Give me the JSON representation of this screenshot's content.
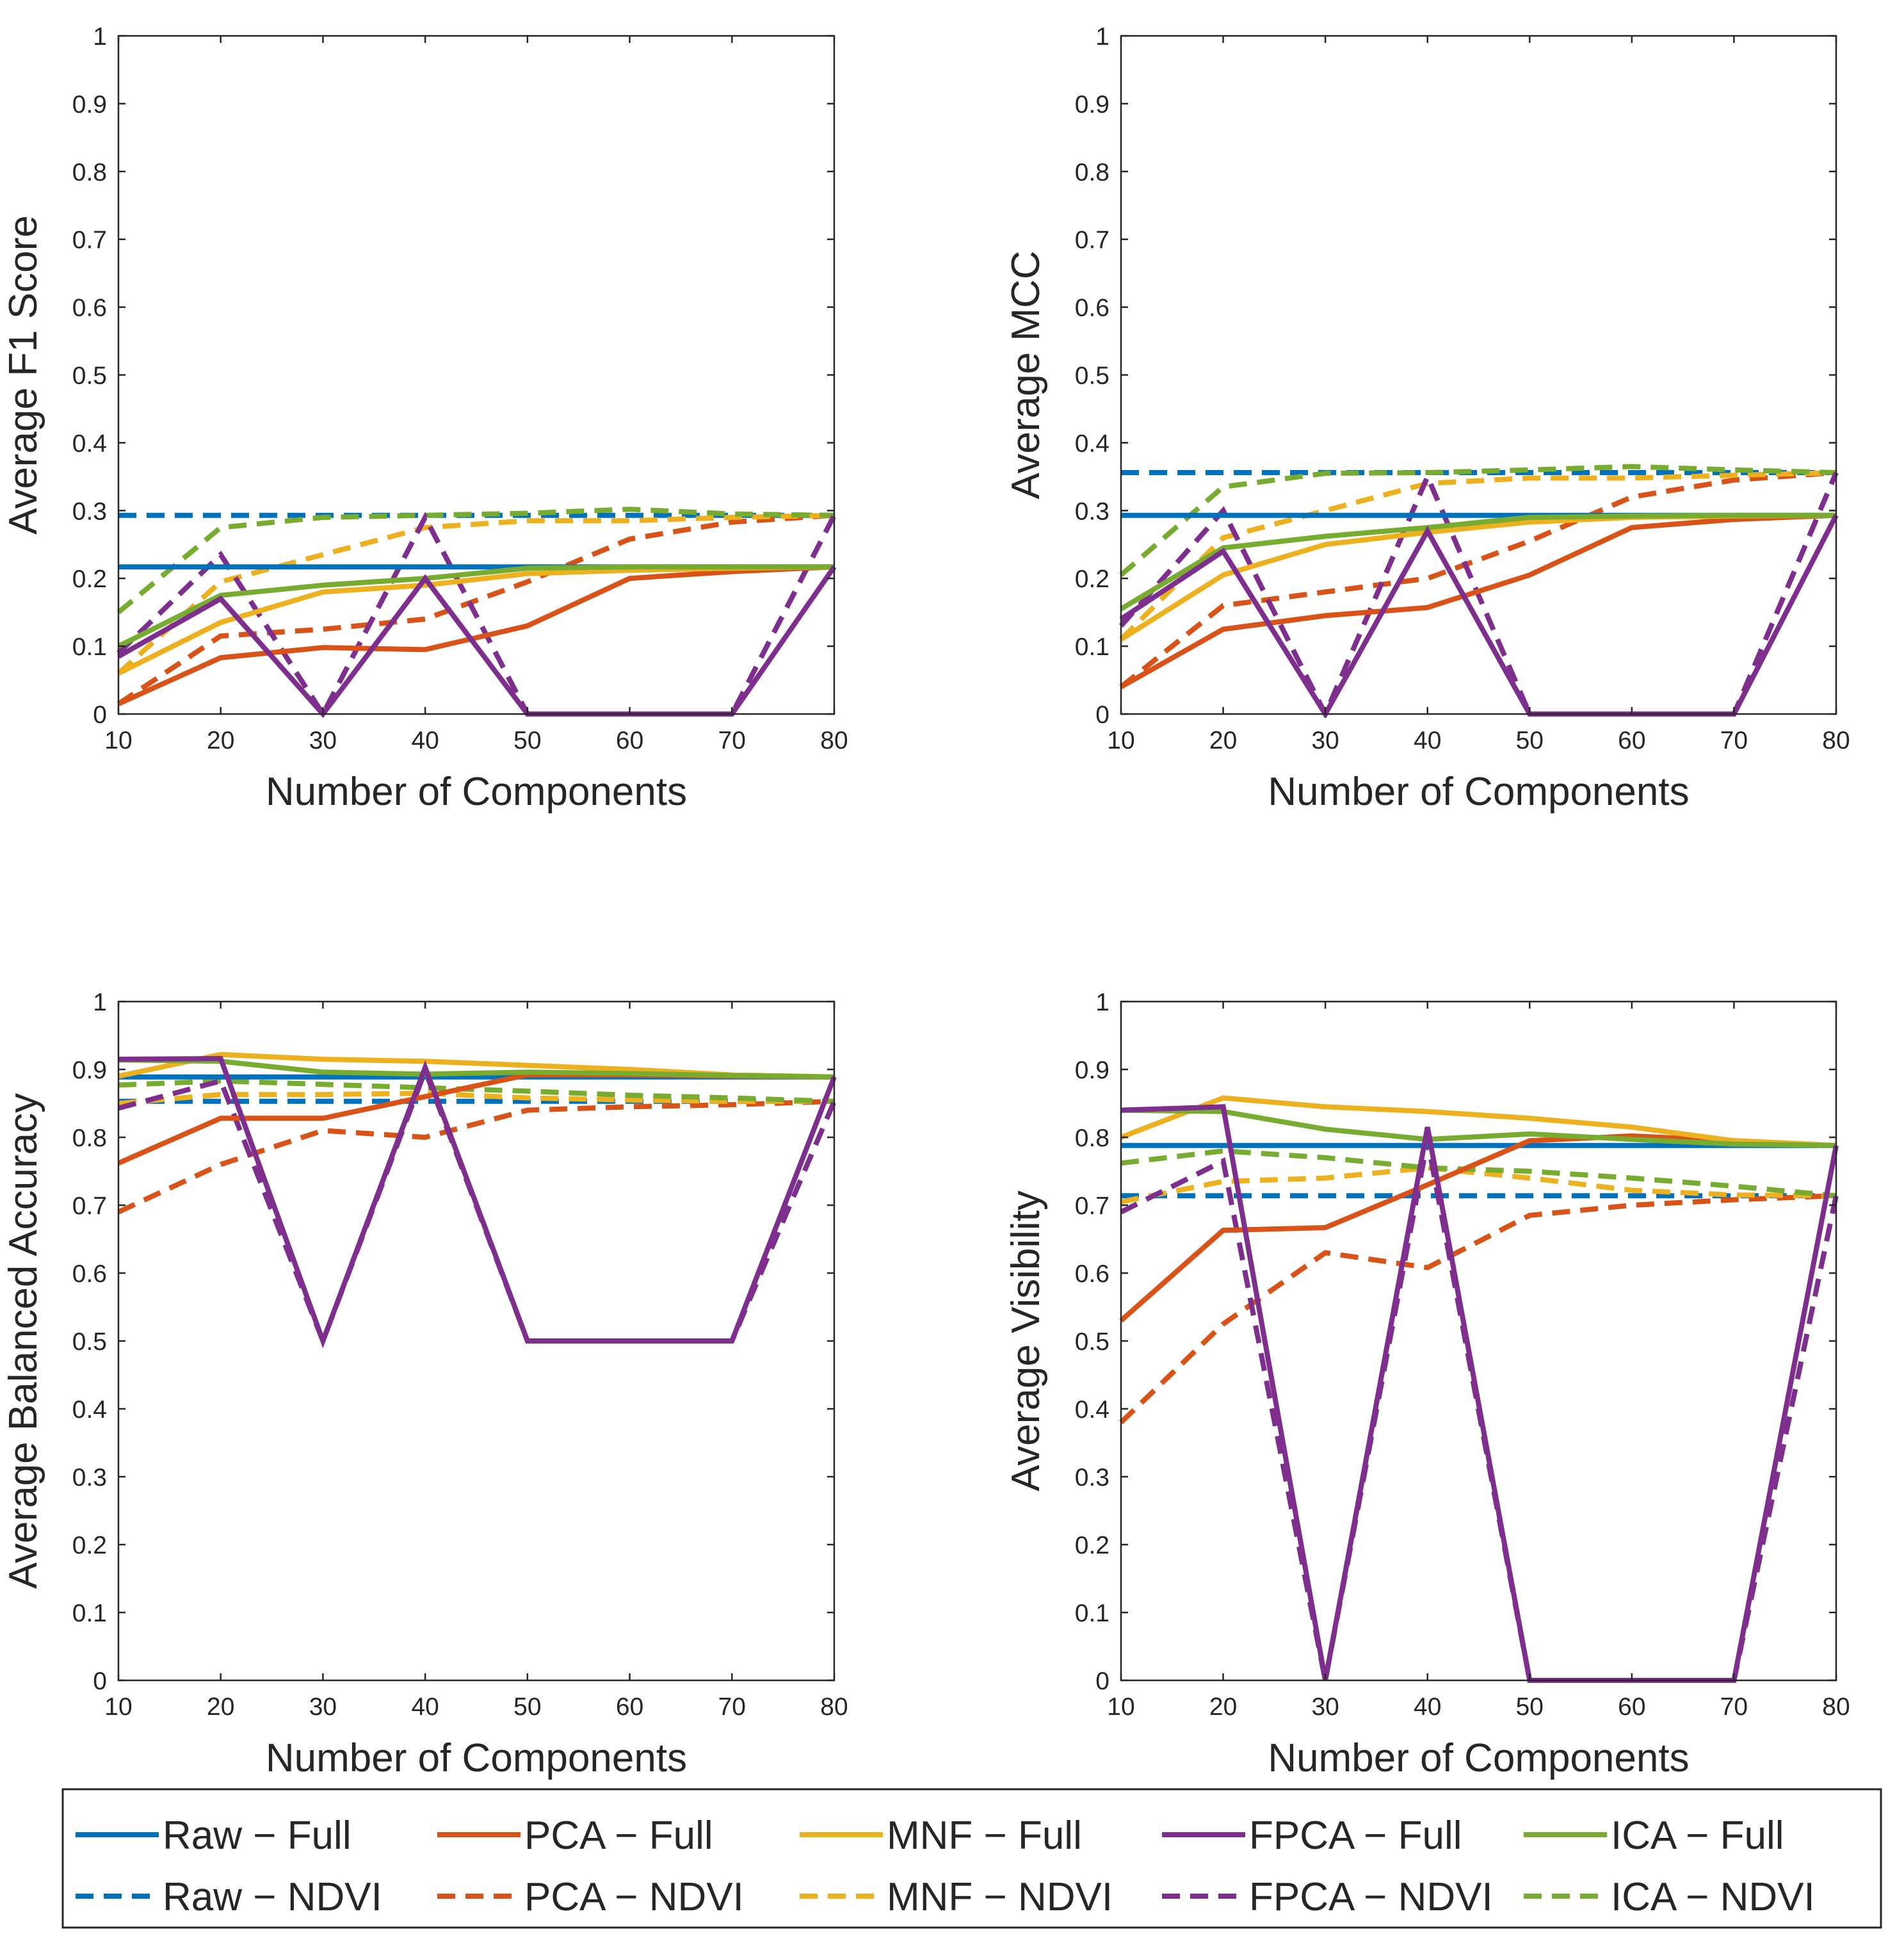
{
  "figure": {
    "legend": {
      "entries": [
        {
          "label": "Raw − Full",
          "series": "raw_full"
        },
        {
          "label": "PCA − Full",
          "series": "pca_full"
        },
        {
          "label": "MNF − Full",
          "series": "mnf_full"
        },
        {
          "label": "FPCA − Full",
          "series": "fpca_full"
        },
        {
          "label": "ICA − Full",
          "series": "ica_full"
        },
        {
          "label": "Raw − NDVI",
          "series": "raw_ndvi"
        },
        {
          "label": "PCA − NDVI",
          "series": "pca_ndvi"
        },
        {
          "label": "MNF − NDVI",
          "series": "mnf_ndvi"
        },
        {
          "label": "FPCA − NDVI",
          "series": "fpca_ndvi"
        },
        {
          "label": "ICA − NDVI",
          "series": "ica_ndvi"
        }
      ]
    },
    "styles": {
      "raw_full": {
        "color": "#0072BD",
        "dash": false
      },
      "pca_full": {
        "color": "#D95319",
        "dash": false
      },
      "mnf_full": {
        "color": "#EDB120",
        "dash": false
      },
      "fpca_full": {
        "color": "#7E2F8E",
        "dash": false
      },
      "ica_full": {
        "color": "#77AC30",
        "dash": false
      },
      "raw_ndvi": {
        "color": "#0072BD",
        "dash": true
      },
      "pca_ndvi": {
        "color": "#D95319",
        "dash": true
      },
      "mnf_ndvi": {
        "color": "#EDB120",
        "dash": true
      },
      "fpca_ndvi": {
        "color": "#7E2F8E",
        "dash": true
      },
      "ica_ndvi": {
        "color": "#77AC30",
        "dash": true
      }
    }
  },
  "chart_data": [
    {
      "type": "line",
      "title": "",
      "xlabel": "Number of Components",
      "ylabel": "Average F1 Score",
      "x": [
        10,
        20,
        30,
        40,
        50,
        60,
        70,
        80
      ],
      "xlim": [
        10,
        80
      ],
      "ylim": [
        0,
        1
      ],
      "xticks": [
        "10",
        "20",
        "30",
        "40",
        "50",
        "60",
        "70",
        "80"
      ],
      "yticks": [
        "0",
        "0.1",
        "0.2",
        "0.3",
        "0.4",
        "0.5",
        "0.6",
        "0.7",
        "0.8",
        "0.9",
        "1"
      ],
      "series": [
        {
          "key": "raw_ndvi",
          "name": "Raw − NDVI",
          "values": [
            0.293,
            0.293,
            0.293,
            0.293,
            0.293,
            0.293,
            0.293,
            0.293
          ]
        },
        {
          "key": "pca_ndvi",
          "name": "PCA − NDVI",
          "values": [
            0.015,
            0.115,
            0.125,
            0.14,
            0.195,
            0.258,
            0.283,
            0.293
          ]
        },
        {
          "key": "mnf_ndvi",
          "name": "MNF − NDVI",
          "values": [
            0.06,
            0.195,
            0.235,
            0.275,
            0.285,
            0.285,
            0.29,
            0.293
          ]
        },
        {
          "key": "ica_ndvi",
          "name": "ICA − NDVI",
          "values": [
            0.15,
            0.275,
            0.29,
            0.293,
            0.296,
            0.302,
            0.295,
            0.293
          ]
        },
        {
          "key": "fpca_ndvi",
          "name": "FPCA − NDVI",
          "values": [
            0.09,
            0.235,
            0.0,
            0.29,
            0.0,
            0.0,
            0.0,
            0.293
          ]
        },
        {
          "key": "raw_full",
          "name": "Raw − Full",
          "values": [
            0.217,
            0.217,
            0.217,
            0.217,
            0.217,
            0.217,
            0.217,
            0.217
          ]
        },
        {
          "key": "pca_full",
          "name": "PCA − Full",
          "values": [
            0.015,
            0.083,
            0.098,
            0.095,
            0.13,
            0.2,
            0.21,
            0.217
          ]
        },
        {
          "key": "mnf_full",
          "name": "MNF − Full",
          "values": [
            0.06,
            0.135,
            0.18,
            0.19,
            0.207,
            0.212,
            0.215,
            0.217
          ]
        },
        {
          "key": "ica_full",
          "name": "ICA − Full",
          "values": [
            0.1,
            0.175,
            0.19,
            0.2,
            0.215,
            0.217,
            0.217,
            0.217
          ]
        },
        {
          "key": "fpca_full",
          "name": "FPCA − Full",
          "values": [
            0.085,
            0.17,
            0.0,
            0.2,
            0.0,
            0.0,
            0.0,
            0.217
          ]
        }
      ]
    },
    {
      "type": "line",
      "title": "",
      "xlabel": "Number of Components",
      "ylabel": "Average MCC",
      "x": [
        10,
        20,
        30,
        40,
        50,
        60,
        70,
        80
      ],
      "xlim": [
        10,
        80
      ],
      "ylim": [
        0,
        1
      ],
      "xticks": [
        "10",
        "20",
        "30",
        "40",
        "50",
        "60",
        "70",
        "80"
      ],
      "yticks": [
        "0",
        "0.1",
        "0.2",
        "0.3",
        "0.4",
        "0.5",
        "0.6",
        "0.7",
        "0.8",
        "0.9",
        "1"
      ],
      "series": [
        {
          "key": "raw_ndvi",
          "name": "Raw − NDVI",
          "values": [
            0.356,
            0.356,
            0.356,
            0.356,
            0.356,
            0.356,
            0.356,
            0.356
          ]
        },
        {
          "key": "pca_ndvi",
          "name": "PCA − NDVI",
          "values": [
            0.04,
            0.16,
            0.18,
            0.2,
            0.255,
            0.32,
            0.345,
            0.356
          ]
        },
        {
          "key": "mnf_ndvi",
          "name": "MNF − NDVI",
          "values": [
            0.11,
            0.26,
            0.3,
            0.34,
            0.348,
            0.348,
            0.352,
            0.356
          ]
        },
        {
          "key": "ica_ndvi",
          "name": "ICA − NDVI",
          "values": [
            0.205,
            0.335,
            0.355,
            0.356,
            0.36,
            0.365,
            0.36,
            0.356
          ]
        },
        {
          "key": "fpca_ndvi",
          "name": "FPCA − NDVI",
          "values": [
            0.13,
            0.3,
            0.0,
            0.35,
            0.0,
            0.0,
            0.0,
            0.356
          ]
        },
        {
          "key": "raw_full",
          "name": "Raw − Full",
          "values": [
            0.293,
            0.293,
            0.293,
            0.293,
            0.293,
            0.293,
            0.293,
            0.293
          ]
        },
        {
          "key": "pca_full",
          "name": "PCA − Full",
          "values": [
            0.04,
            0.125,
            0.145,
            0.157,
            0.205,
            0.275,
            0.287,
            0.293
          ]
        },
        {
          "key": "mnf_full",
          "name": "MNF − Full",
          "values": [
            0.11,
            0.205,
            0.25,
            0.268,
            0.283,
            0.29,
            0.292,
            0.293
          ]
        },
        {
          "key": "ica_full",
          "name": "ICA − Full",
          "values": [
            0.155,
            0.245,
            0.262,
            0.275,
            0.29,
            0.292,
            0.293,
            0.293
          ]
        },
        {
          "key": "fpca_full",
          "name": "FPCA − Full",
          "values": [
            0.14,
            0.24,
            0.0,
            0.27,
            0.0,
            0.0,
            0.0,
            0.293
          ]
        }
      ]
    },
    {
      "type": "line",
      "title": "",
      "xlabel": "Number of Components",
      "ylabel": "Average Balanced Accuracy",
      "x": [
        10,
        20,
        30,
        40,
        50,
        60,
        70,
        80
      ],
      "xlim": [
        10,
        80
      ],
      "ylim": [
        0,
        1
      ],
      "xticks": [
        "10",
        "20",
        "30",
        "40",
        "50",
        "60",
        "70",
        "80"
      ],
      "yticks": [
        "0",
        "0.1",
        "0.2",
        "0.3",
        "0.4",
        "0.5",
        "0.6",
        "0.7",
        "0.8",
        "0.9",
        "1"
      ],
      "series": [
        {
          "key": "raw_ndvi",
          "name": "Raw − NDVI",
          "values": [
            0.853,
            0.853,
            0.853,
            0.853,
            0.853,
            0.853,
            0.853,
            0.853
          ]
        },
        {
          "key": "pca_ndvi",
          "name": "PCA − NDVI",
          "values": [
            0.69,
            0.76,
            0.81,
            0.8,
            0.84,
            0.845,
            0.848,
            0.853
          ]
        },
        {
          "key": "mnf_ndvi",
          "name": "MNF − NDVI",
          "values": [
            0.85,
            0.863,
            0.863,
            0.865,
            0.858,
            0.855,
            0.853,
            0.853
          ]
        },
        {
          "key": "ica_ndvi",
          "name": "ICA − NDVI",
          "values": [
            0.877,
            0.883,
            0.878,
            0.873,
            0.868,
            0.862,
            0.858,
            0.853
          ]
        },
        {
          "key": "fpca_ndvi",
          "name": "FPCA − NDVI",
          "values": [
            0.843,
            0.883,
            0.5,
            0.898,
            0.5,
            0.5,
            0.5,
            0.853
          ]
        },
        {
          "key": "raw_full",
          "name": "Raw − Full",
          "values": [
            0.889,
            0.889,
            0.889,
            0.889,
            0.889,
            0.889,
            0.889,
            0.889
          ]
        },
        {
          "key": "pca_full",
          "name": "PCA − Full",
          "values": [
            0.762,
            0.828,
            0.828,
            0.86,
            0.892,
            0.892,
            0.89,
            0.889
          ]
        },
        {
          "key": "mnf_full",
          "name": "MNF − Full",
          "values": [
            0.89,
            0.922,
            0.915,
            0.912,
            0.906,
            0.9,
            0.892,
            0.889
          ]
        },
        {
          "key": "ica_full",
          "name": "ICA − Full",
          "values": [
            0.914,
            0.912,
            0.896,
            0.893,
            0.896,
            0.894,
            0.891,
            0.889
          ]
        },
        {
          "key": "fpca_full",
          "name": "FPCA − Full",
          "values": [
            0.915,
            0.916,
            0.5,
            0.903,
            0.5,
            0.5,
            0.5,
            0.889
          ]
        }
      ]
    },
    {
      "type": "line",
      "title": "",
      "xlabel": "Number of Components",
      "ylabel": "Average Visibility",
      "x": [
        10,
        20,
        30,
        40,
        50,
        60,
        70,
        80
      ],
      "xlim": [
        10,
        80
      ],
      "ylim": [
        0,
        1
      ],
      "xticks": [
        "10",
        "20",
        "30",
        "40",
        "50",
        "60",
        "70",
        "80"
      ],
      "yticks": [
        "0",
        "0.1",
        "0.2",
        "0.3",
        "0.4",
        "0.5",
        "0.6",
        "0.7",
        "0.8",
        "0.9",
        "1"
      ],
      "series": [
        {
          "key": "raw_ndvi",
          "name": "Raw − NDVI",
          "values": [
            0.714,
            0.714,
            0.714,
            0.714,
            0.714,
            0.714,
            0.714,
            0.714
          ]
        },
        {
          "key": "pca_ndvi",
          "name": "PCA − NDVI",
          "values": [
            0.38,
            0.525,
            0.63,
            0.608,
            0.685,
            0.7,
            0.708,
            0.714
          ]
        },
        {
          "key": "mnf_ndvi",
          "name": "MNF − NDVI",
          "values": [
            0.705,
            0.735,
            0.74,
            0.755,
            0.74,
            0.722,
            0.715,
            0.714
          ]
        },
        {
          "key": "ica_ndvi",
          "name": "ICA − NDVI",
          "values": [
            0.762,
            0.78,
            0.77,
            0.755,
            0.75,
            0.74,
            0.728,
            0.714
          ]
        },
        {
          "key": "fpca_ndvi",
          "name": "FPCA − NDVI",
          "values": [
            0.69,
            0.765,
            0.0,
            0.795,
            0.0,
            0.0,
            0.0,
            0.714
          ]
        },
        {
          "key": "raw_full",
          "name": "Raw − Full",
          "values": [
            0.788,
            0.788,
            0.788,
            0.788,
            0.788,
            0.788,
            0.788,
            0.788
          ]
        },
        {
          "key": "pca_full",
          "name": "PCA − Full",
          "values": [
            0.53,
            0.663,
            0.667,
            0.73,
            0.795,
            0.802,
            0.795,
            0.788
          ]
        },
        {
          "key": "mnf_full",
          "name": "MNF − Full",
          "values": [
            0.8,
            0.858,
            0.845,
            0.838,
            0.828,
            0.815,
            0.795,
            0.788
          ]
        },
        {
          "key": "ica_full",
          "name": "ICA − Full",
          "values": [
            0.84,
            0.838,
            0.812,
            0.797,
            0.805,
            0.797,
            0.79,
            0.788
          ]
        },
        {
          "key": "fpca_full",
          "name": "FPCA − Full",
          "values": [
            0.84,
            0.845,
            0.0,
            0.815,
            0.0,
            0.0,
            0.0,
            0.788
          ]
        }
      ]
    }
  ]
}
